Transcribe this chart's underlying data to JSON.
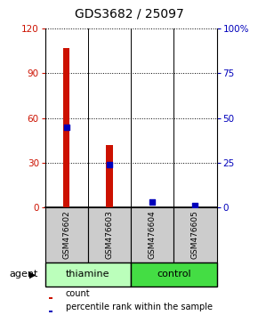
{
  "title": "GDS3682 / 25097",
  "samples": [
    "GSM476602",
    "GSM476603",
    "GSM476604",
    "GSM476605"
  ],
  "count_values": [
    107,
    42,
    0,
    0
  ],
  "percentile_values": [
    45,
    24,
    3,
    1
  ],
  "left_ylim": [
    0,
    120
  ],
  "left_yticks": [
    0,
    30,
    60,
    90,
    120
  ],
  "right_ylim": [
    0,
    100
  ],
  "right_yticks": [
    0,
    25,
    50,
    75,
    100
  ],
  "right_yticklabels": [
    "0",
    "25",
    "50",
    "75",
    "100%"
  ],
  "bar_color": "#cc1100",
  "dot_color": "#0000bb",
  "left_tick_color": "#cc1100",
  "right_tick_color": "#0000bb",
  "sample_box_color": "#cccccc",
  "thiamine_color": "#bbffbb",
  "control_color": "#44dd44",
  "agent_label": "agent",
  "legend_count": "count",
  "legend_percentile": "percentile rank within the sample",
  "title_fontsize": 10,
  "bar_width": 0.15,
  "dot_size": 18
}
